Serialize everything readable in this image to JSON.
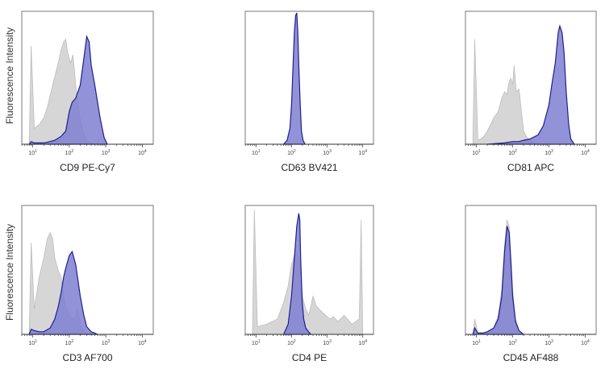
{
  "colors": {
    "sample_fill": "#7f7fd2",
    "sample_stroke": "#1f1f8f",
    "control_fill": "#d6d6d6",
    "control_stroke": "#bdbdbd"
  },
  "chart_data": [
    {
      "type": "area",
      "xlabel": "CD9 PE-Cy7",
      "ylabel": "Fluorescence Intensity",
      "xscale": "log",
      "xlim": [
        5,
        20000
      ],
      "xticks": [
        {
          "base": "10",
          "exp": "1"
        },
        {
          "base": "10",
          "exp": "2"
        },
        {
          "base": "10",
          "exp": "3"
        },
        {
          "base": "10",
          "exp": "4"
        }
      ],
      "grid": false,
      "series": [
        {
          "role": "control",
          "x": [
            8,
            9,
            11,
            15,
            20,
            25,
            35,
            50,
            60,
            70,
            80,
            90,
            100,
            110,
            125,
            140,
            150,
            175,
            200,
            250,
            300,
            400,
            500
          ],
          "y": [
            0,
            0.75,
            0.12,
            0.15,
            0.2,
            0.28,
            0.45,
            0.62,
            0.72,
            0.78,
            0.8,
            0.7,
            0.65,
            0.62,
            0.68,
            0.55,
            0.45,
            0.3,
            0.18,
            0.08,
            0.03,
            0.01,
            0
          ]
        },
        {
          "role": "sample",
          "x": [
            8,
            9,
            11,
            15,
            20,
            30,
            40,
            60,
            80,
            100,
            120,
            150,
            200,
            250,
            300,
            350,
            400,
            500,
            700,
            900,
            1100
          ],
          "y": [
            0,
            0.02,
            0.01,
            0.01,
            0.01,
            0.02,
            0.03,
            0.06,
            0.1,
            0.25,
            0.32,
            0.35,
            0.45,
            0.65,
            0.82,
            0.78,
            0.6,
            0.45,
            0.2,
            0.05,
            0
          ]
        }
      ]
    },
    {
      "type": "area",
      "xlabel": "CD63 BV421",
      "ylabel": "",
      "xscale": "log",
      "xlim": [
        5,
        20000
      ],
      "xticks": [
        {
          "base": "10",
          "exp": "1"
        },
        {
          "base": "10",
          "exp": "2"
        },
        {
          "base": "10",
          "exp": "3"
        },
        {
          "base": "10",
          "exp": "4"
        }
      ],
      "grid": false,
      "series": [
        {
          "role": "sample",
          "x": [
            60,
            75,
            90,
            100,
            110,
            120,
            130,
            140,
            150,
            160,
            175,
            190,
            210,
            240
          ],
          "y": [
            0,
            0.03,
            0.12,
            0.3,
            0.6,
            0.85,
            0.98,
            1.0,
            0.85,
            0.6,
            0.3,
            0.1,
            0.03,
            0
          ]
        }
      ]
    },
    {
      "type": "area",
      "xlabel": "CD81 APC",
      "ylabel": "",
      "xscale": "log",
      "xlim": [
        5,
        20000
      ],
      "xticks": [
        {
          "base": "10",
          "exp": "1"
        },
        {
          "base": "10",
          "exp": "2"
        },
        {
          "base": "10",
          "exp": "3"
        },
        {
          "base": "10",
          "exp": "4"
        }
      ],
      "grid": false,
      "series": [
        {
          "role": "control",
          "x": [
            8,
            9,
            11,
            15,
            20,
            30,
            40,
            50,
            60,
            70,
            80,
            90,
            100,
            110,
            125,
            150,
            175,
            200,
            250,
            300,
            400,
            500
          ],
          "y": [
            0,
            0.8,
            0.03,
            0.05,
            0.1,
            0.2,
            0.25,
            0.35,
            0.4,
            0.38,
            0.48,
            0.5,
            0.45,
            0.6,
            0.4,
            0.42,
            0.25,
            0.1,
            0.05,
            0.03,
            0.01,
            0
          ]
        },
        {
          "role": "sample",
          "x": [
            20,
            60,
            100,
            150,
            200,
            300,
            500,
            700,
            1000,
            1200,
            1500,
            1800,
            2000,
            2300,
            2600,
            3000,
            3500,
            4000,
            5000
          ],
          "y": [
            0,
            0.01,
            0.02,
            0.02,
            0.03,
            0.04,
            0.07,
            0.14,
            0.3,
            0.45,
            0.62,
            0.85,
            0.9,
            0.85,
            0.7,
            0.4,
            0.15,
            0.04,
            0
          ]
        }
      ]
    },
    {
      "type": "area",
      "xlabel": "CD3 AF700",
      "ylabel": "Fluorescence Intensity",
      "xscale": "log",
      "xlim": [
        5,
        20000
      ],
      "xticks": [
        {
          "base": "10",
          "exp": "1"
        },
        {
          "base": "10",
          "exp": "2"
        },
        {
          "base": "10",
          "exp": "3"
        },
        {
          "base": "10",
          "exp": "4"
        }
      ],
      "grid": false,
      "series": [
        {
          "role": "control",
          "x": [
            8,
            9,
            11,
            15,
            20,
            25,
            30,
            35,
            40,
            50,
            60,
            70,
            80,
            100,
            120,
            150,
            170,
            200,
            250,
            300,
            400
          ],
          "y": [
            0,
            0.72,
            0.2,
            0.45,
            0.6,
            0.75,
            0.8,
            0.75,
            0.6,
            0.5,
            0.45,
            0.3,
            0.22,
            0.15,
            0.12,
            0.14,
            0.2,
            0.08,
            0.03,
            0.01,
            0
          ]
        },
        {
          "role": "sample",
          "x": [
            8,
            9,
            11,
            15,
            20,
            30,
            40,
            50,
            60,
            70,
            80,
            100,
            120,
            150,
            200,
            250,
            300,
            400,
            500,
            600
          ],
          "y": [
            0,
            0.04,
            0.03,
            0.02,
            0.02,
            0.05,
            0.12,
            0.22,
            0.33,
            0.45,
            0.52,
            0.62,
            0.65,
            0.55,
            0.3,
            0.15,
            0.06,
            0.02,
            0.01,
            0
          ]
        }
      ]
    },
    {
      "type": "area",
      "xlabel": "CD4 PE",
      "ylabel": "",
      "xscale": "log",
      "xlim": [
        5,
        20000
      ],
      "xticks": [
        {
          "base": "10",
          "exp": "1"
        },
        {
          "base": "10",
          "exp": "2"
        },
        {
          "base": "10",
          "exp": "3"
        },
        {
          "base": "10",
          "exp": "4"
        }
      ],
      "grid": false,
      "series": [
        {
          "role": "control",
          "x": [
            8,
            9,
            11,
            20,
            40,
            60,
            80,
            100,
            120,
            140,
            160,
            180,
            200,
            250,
            300,
            350,
            400,
            500,
            700,
            900,
            1200,
            1500,
            2000,
            3000,
            5000,
            8000,
            9000,
            10000
          ],
          "y": [
            0,
            0.98,
            0.06,
            0.08,
            0.12,
            0.25,
            0.38,
            0.55,
            0.62,
            0.65,
            0.6,
            0.5,
            0.3,
            0.2,
            0.15,
            0.22,
            0.3,
            0.22,
            0.18,
            0.15,
            0.12,
            0.14,
            0.1,
            0.15,
            0.08,
            0.12,
            0.9,
            0
          ]
        },
        {
          "role": "sample",
          "x": [
            60,
            80,
            100,
            120,
            140,
            160,
            170,
            180,
            200,
            220,
            250,
            300,
            350
          ],
          "y": [
            0,
            0.08,
            0.3,
            0.6,
            0.85,
            0.95,
            0.9,
            0.6,
            0.25,
            0.12,
            0.05,
            0.02,
            0
          ]
        }
      ]
    },
    {
      "type": "area",
      "xlabel": "CD45 AF488",
      "ylabel": "",
      "xscale": "log",
      "xlim": [
        5,
        20000
      ],
      "xticks": [
        {
          "base": "10",
          "exp": "1"
        },
        {
          "base": "10",
          "exp": "2"
        },
        {
          "base": "10",
          "exp": "3"
        },
        {
          "base": "10",
          "exp": "4"
        }
      ],
      "grid": false,
      "series": [
        {
          "role": "control",
          "x": [
            8,
            9,
            11,
            15,
            20,
            30,
            40,
            50,
            60,
            70,
            80,
            90,
            100,
            120,
            150,
            200
          ],
          "y": [
            0,
            0.12,
            0.01,
            0.01,
            0.02,
            0.05,
            0.15,
            0.35,
            0.7,
            0.9,
            0.85,
            0.6,
            0.35,
            0.12,
            0.03,
            0
          ]
        },
        {
          "role": "sample",
          "x": [
            8,
            9,
            11,
            15,
            20,
            30,
            40,
            50,
            60,
            70,
            80,
            90,
            100,
            120,
            150,
            200
          ],
          "y": [
            0,
            0.05,
            0.01,
            0.01,
            0.02,
            0.05,
            0.12,
            0.3,
            0.65,
            0.85,
            0.8,
            0.55,
            0.3,
            0.1,
            0.03,
            0
          ]
        }
      ]
    }
  ]
}
